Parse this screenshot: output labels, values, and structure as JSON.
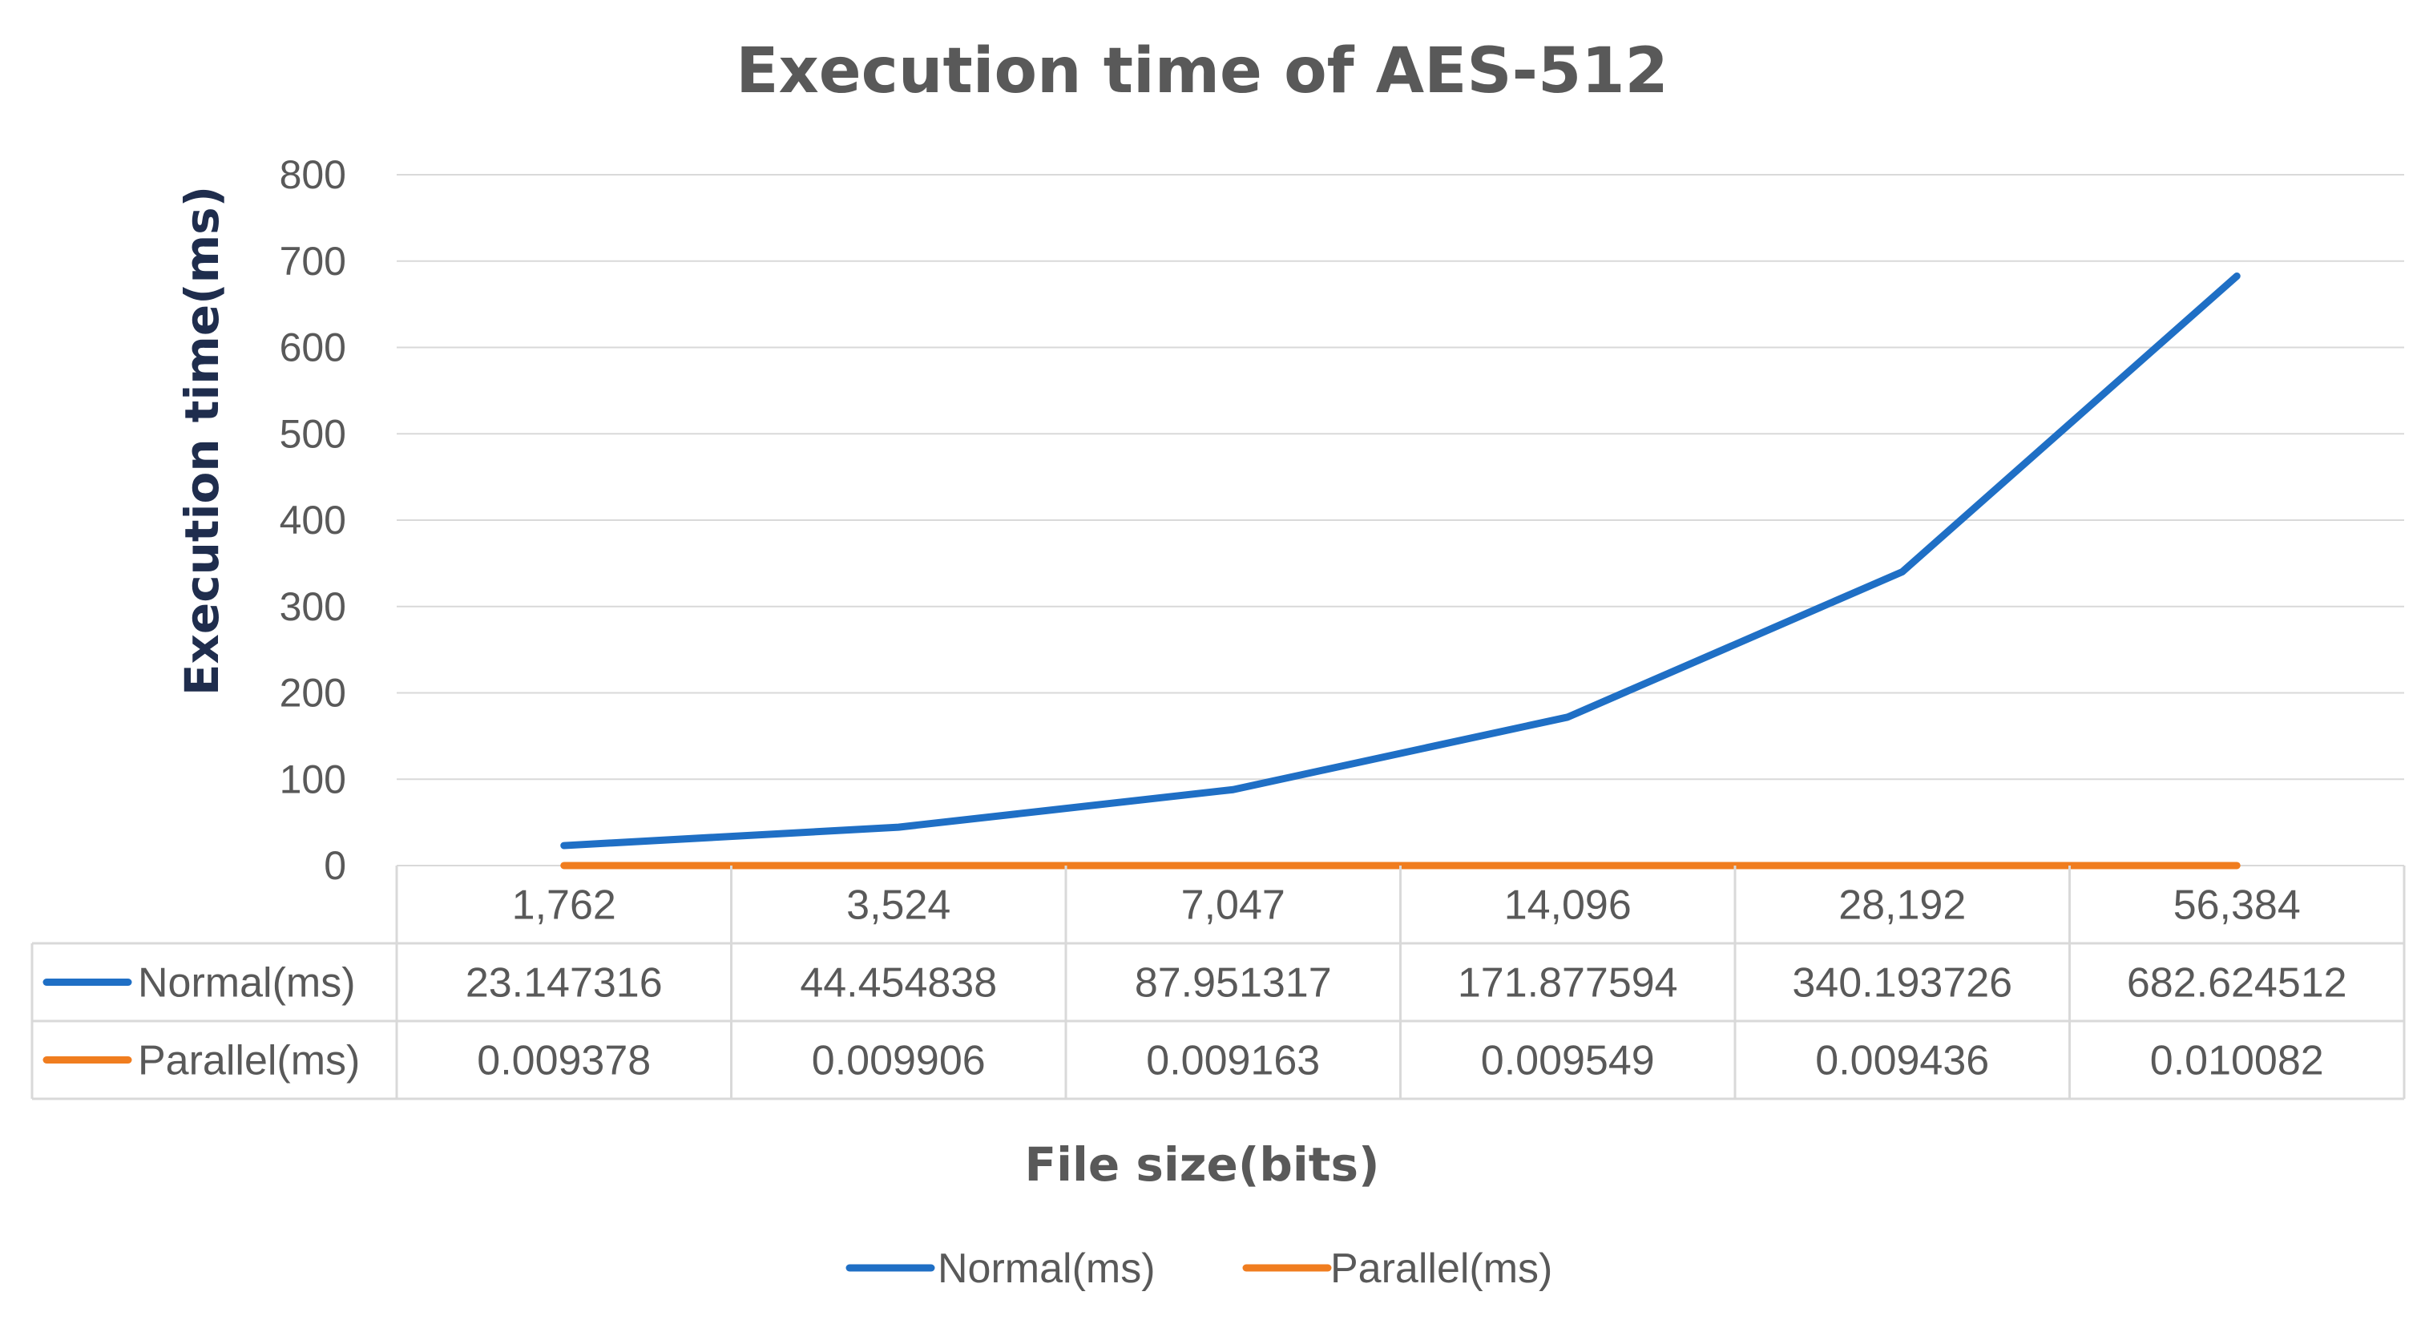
{
  "chart_data": {
    "type": "line",
    "title": "Execution time of AES-512",
    "xlabel": "File size(bits)",
    "ylabel": "Execution time(ms)",
    "categories": [
      "1,762",
      "3,524",
      "7,047",
      "14,096",
      "28,192",
      "56,384"
    ],
    "ylim": [
      0,
      800
    ],
    "yticks": [
      0,
      100,
      200,
      300,
      400,
      500,
      600,
      700,
      800
    ],
    "grid": true,
    "legend": "bottom",
    "data_table": true,
    "series": [
      {
        "name": "Normal(ms)",
        "color": "#1f6fc5",
        "values": [
          23.147316,
          44.454838,
          87.951317,
          171.877594,
          340.193726,
          682.624512
        ],
        "labels": [
          "23.147316",
          "44.454838",
          "87.951317",
          "171.877594",
          "340.193726",
          "682.624512"
        ]
      },
      {
        "name": "Parallel(ms)",
        "color": "#f07d1f",
        "values": [
          0.009378,
          0.009906,
          0.009163,
          0.009549,
          0.009436,
          0.010082
        ],
        "labels": [
          "0.009378",
          "0.009906",
          "0.009163",
          "0.009549",
          "0.009436",
          "0.010082"
        ]
      }
    ]
  }
}
